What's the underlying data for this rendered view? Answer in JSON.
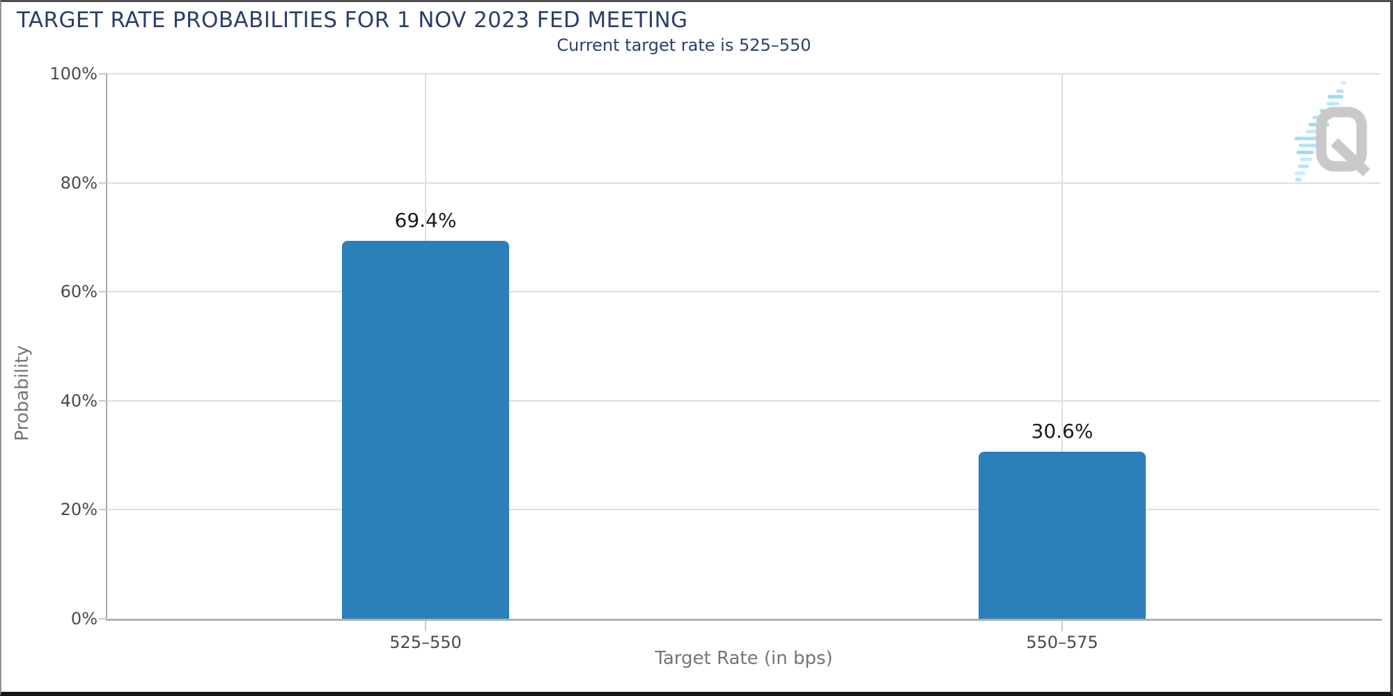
{
  "header": {
    "title": "TARGET RATE PROBABILITIES FOR 1 NOV 2023 FED MEETING",
    "subtitle": "Current target rate is 525–550"
  },
  "chart_data": {
    "type": "bar",
    "title": "TARGET RATE PROBABILITIES FOR 1 NOV 2023 FED MEETING",
    "subtitle": "Current target rate is 525–550",
    "categories": [
      "525–550",
      "550–575"
    ],
    "values": [
      69.4,
      30.6
    ],
    "value_labels": [
      "69.4%",
      "30.6%"
    ],
    "xlabel": "Target Rate (in bps)",
    "ylabel": "Probability",
    "ylim": [
      0,
      100
    ],
    "ytick_labels": [
      "0%",
      "20%",
      "40%",
      "60%",
      "80%",
      "100%"
    ],
    "grid": true,
    "legend": "none",
    "bar_color": "#2c80b9"
  },
  "watermark": {
    "icon": "quikstrike-q-logo",
    "letter": "Q",
    "gray": "#c9c9c9",
    "blue": "#a9ddf4"
  },
  "colors": {
    "title_text": "#2b3f6b",
    "bar": "#2c80b9",
    "axis_line": "#b0b0b0",
    "gridline": "#dedede",
    "tick_label": "#4a4a4a",
    "axis_title": "#757575",
    "value_label": "#1a1a1a"
  }
}
